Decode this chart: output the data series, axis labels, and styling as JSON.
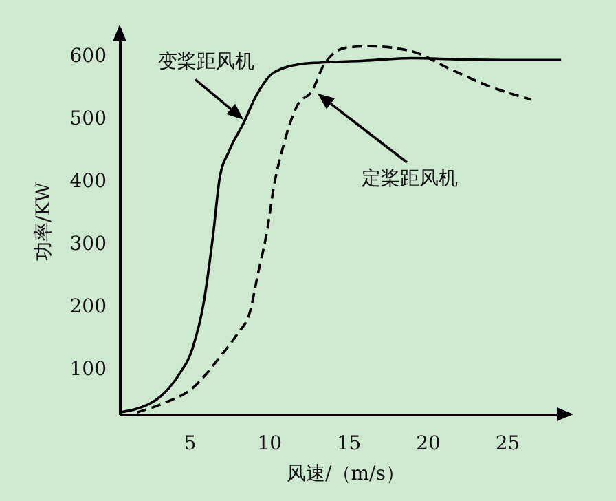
{
  "chart_data": {
    "type": "line",
    "xlabel": "风速/（m/s）",
    "ylabel": "功率/KW",
    "xlim": [
      0.6,
      29
    ],
    "ylim": [
      27,
      645
    ],
    "xticks": [
      5,
      10,
      15,
      20,
      25
    ],
    "yticks": [
      100,
      200,
      300,
      400,
      500,
      600
    ],
    "grid": false,
    "series": [
      {
        "color": "#000000",
        "line_style": "solid",
        "x": [
          0.6,
          1.7,
          3.2,
          4.3,
          5.2,
          5.9,
          6.5,
          6.9,
          7.5,
          8.4,
          9.2,
          10.3,
          12.1,
          13.2,
          16,
          19,
          22,
          25,
          28.4
        ],
        "values": [
          30,
          36,
          56,
          89,
          133,
          206,
          316,
          404,
          448,
          492,
          536,
          573,
          587,
          589,
          592,
          596,
          594,
          593,
          593
        ]
      },
      {
        "color": "#000000",
        "line_style": "dashed",
        "x": [
          1.7,
          3.4,
          5.2,
          6.9,
          8,
          8.8,
          9.3,
          9.9,
          10.3,
          10.9,
          11.8,
          12.7,
          13.5,
          14.9,
          16.4,
          19,
          21.3,
          23.9,
          26.5
        ],
        "values": [
          30,
          45,
          69,
          118,
          155,
          190,
          250,
          322,
          389,
          455,
          521,
          543,
          587,
          613,
          615,
          607,
          580,
          551,
          530
        ]
      }
    ],
    "annotations": [
      {
        "text": "变桨距风机",
        "x": 8.4,
        "y": 498
      },
      "定桨距风机"
    ]
  }
}
